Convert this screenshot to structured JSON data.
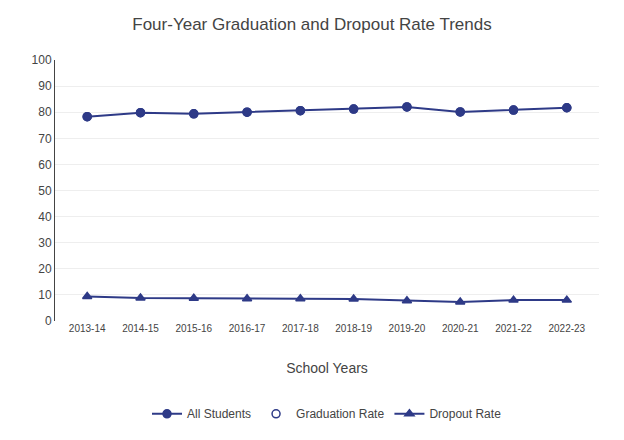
{
  "chart_data": {
    "type": "line",
    "title": "Four-Year Graduation and Dropout Rate Trends",
    "xlabel": "School Years",
    "categories": [
      "2013-14",
      "2014-15",
      "2015-16",
      "2016-17",
      "2017-18",
      "2018-19",
      "2019-20",
      "2020-21",
      "2021-22",
      "2022-23"
    ],
    "series": [
      {
        "name": "All Students",
        "color": "#2e3a87",
        "marker": "circle",
        "line_style": "solid",
        "values": [
          78.3,
          79.8,
          79.4,
          80.0,
          80.6,
          81.2,
          82.0,
          80.1,
          80.8,
          81.7
        ]
      },
      {
        "name": "Graduation Rate",
        "color": "#2e3a87",
        "marker": "open circle",
        "line_style": "none",
        "values": [
          78.3,
          79.8,
          79.4,
          80.0,
          80.6,
          81.2,
          82.0,
          80.1,
          80.8,
          81.7
        ]
      },
      {
        "name": "Dropout Rate",
        "color": "#2e3a87",
        "marker": "triangle",
        "line_style": "solid",
        "values": [
          9.4,
          8.8,
          8.7,
          8.5,
          8.5,
          8.4,
          7.8,
          7.3,
          8.0,
          8.0
        ]
      }
    ],
    "ylim": [
      0,
      100
    ],
    "yticks": [
      0,
      10,
      20,
      30,
      40,
      50,
      60,
      70,
      80,
      90,
      100
    ],
    "grid": true,
    "legend": "bottom"
  }
}
